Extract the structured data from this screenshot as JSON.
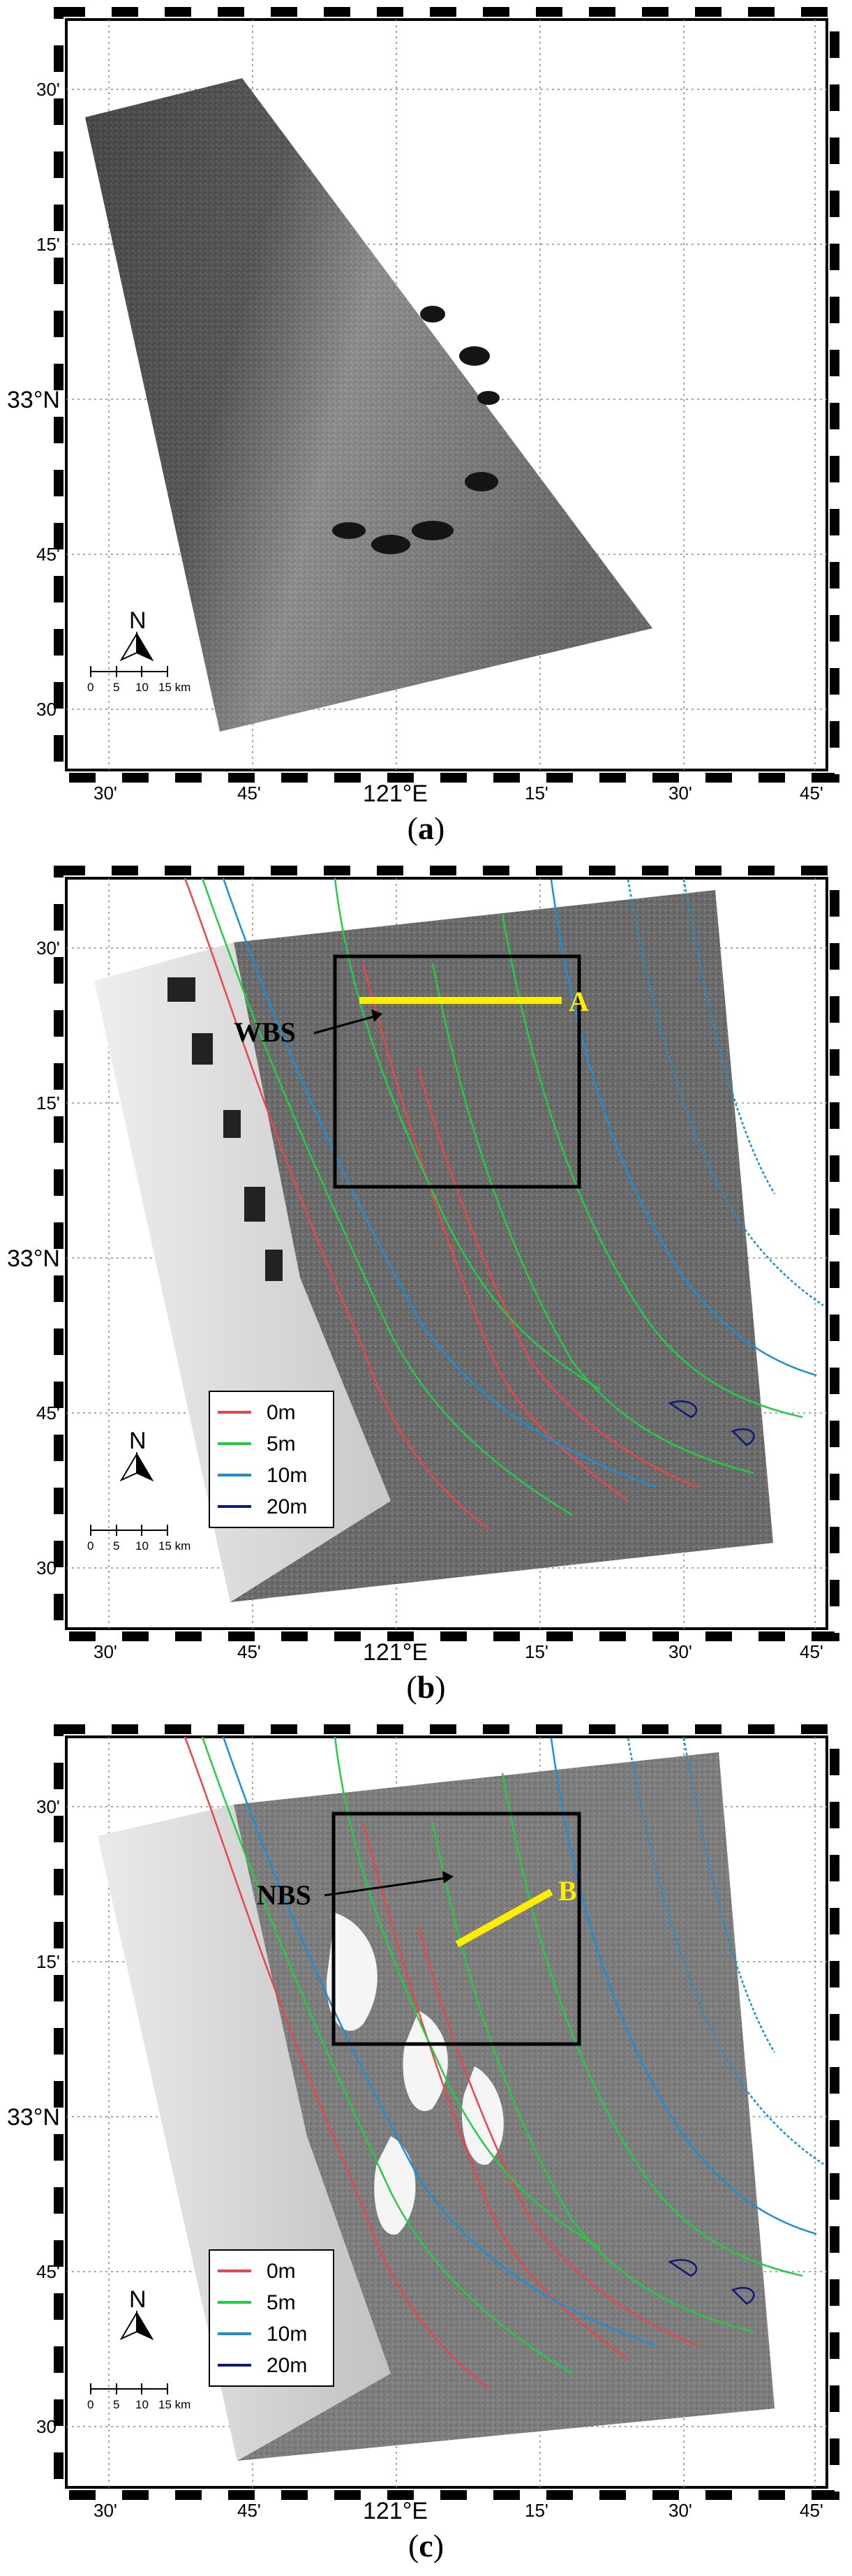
{
  "panels": [
    {
      "id": "a",
      "caption_letter": "a",
      "lat_ticks": [
        "30'",
        "15'",
        "33°N",
        "45'",
        "30'"
      ],
      "lon_ticks": [
        "30'",
        "45'",
        "121°E",
        "15'",
        "30'",
        "45'"
      ],
      "has_contours": false
    },
    {
      "id": "b",
      "caption_letter": "b",
      "lat_ticks": [
        "30'",
        "15'",
        "33°N",
        "45'",
        "30'"
      ],
      "lon_ticks": [
        "30'",
        "45'",
        "121°E",
        "15'",
        "30'",
        "45'"
      ],
      "has_contours": true,
      "annotation_label": "WBS",
      "transect_label": "A"
    },
    {
      "id": "c",
      "caption_letter": "c",
      "lat_ticks": [
        "30'",
        "15'",
        "33°N",
        "45'",
        "30'"
      ],
      "lon_ticks": [
        "30'",
        "45'",
        "121°E",
        "15'",
        "30'",
        "45'"
      ],
      "has_contours": true,
      "annotation_label": "NBS",
      "transect_label": "B"
    }
  ],
  "north_arrow_label": "N",
  "scale_bar": {
    "labels": [
      "0",
      "5",
      "10",
      "15 km"
    ]
  },
  "legend": [
    {
      "label": "0m",
      "color": "#e8464a"
    },
    {
      "label": "5m",
      "color": "#22cc44"
    },
    {
      "label": "10m",
      "color": "#1a8fd6"
    },
    {
      "label": "20m",
      "color": "#0b1a7a"
    }
  ],
  "colors": {
    "transect": "#ffee00",
    "box": "#000000"
  }
}
